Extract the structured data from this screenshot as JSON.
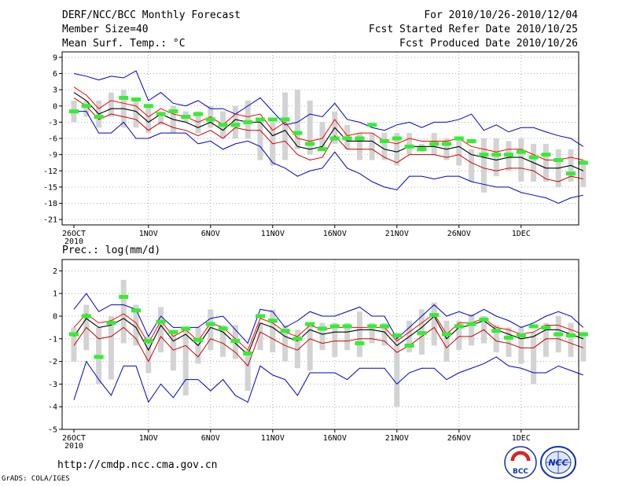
{
  "header": {
    "title": "DERF/NCC/BCC Monthly Forecast",
    "member": "Member Size=40",
    "variable": "Mean Surf. Temp.: °C",
    "period": "For 2010/10/26-2010/12/04",
    "start": "Fcst Started Refer Date 2010/10/25",
    "produced": "Fcst Produced Date 2010/10/26"
  },
  "footer": {
    "url": "http://cmdp.ncc.cma.gov.cn",
    "grads": "GrADS: COLA/IGES",
    "logo_bcc": "BCC",
    "logo_ncc": "NCC"
  },
  "colors": {
    "max": "#0000cc",
    "min": "#0000cc",
    "mean": "#000000",
    "upper": "#ff0000",
    "lower": "#cc0000",
    "box": "#d3d3d3",
    "obs": "#33ee33"
  },
  "chart_data": [
    {
      "type": "line",
      "title": "Mean Surf. Temp.: °C",
      "ylim": [
        -22,
        10
      ],
      "yticks": [
        9,
        6,
        3,
        0,
        -3,
        -6,
        -9,
        -12,
        -15,
        -18,
        -21
      ],
      "xticks": [
        {
          "i": 0,
          "label": "26OCT",
          "year": "2010"
        },
        {
          "i": 6,
          "label": "1NOV"
        },
        {
          "i": 11,
          "label": "6NOV"
        },
        {
          "i": 16,
          "label": "11NOV"
        },
        {
          "i": 21,
          "label": "16NOV"
        },
        {
          "i": 26,
          "label": "21NOV"
        },
        {
          "i": 31,
          "label": "26NOV"
        },
        {
          "i": 36,
          "label": "1DEC"
        }
      ],
      "series": {
        "max": [
          6,
          5.5,
          4.8,
          5.5,
          5.2,
          6.5,
          1,
          2.5,
          0.5,
          0,
          1,
          -0.5,
          -0.5,
          -1.5,
          0,
          1.5,
          -1,
          -3.5,
          -3,
          -1.5,
          -2,
          0.5,
          -2.5,
          -3,
          -4,
          -4.5,
          -3.5,
          -3,
          -4,
          -3,
          -3,
          -2.5,
          -1.5,
          -4.5,
          -3.5,
          -4.8,
          -4,
          -4,
          -4.8,
          -5.5,
          -6,
          -7.5
        ],
        "upper": [
          3.5,
          2,
          -0.5,
          1,
          0.5,
          0,
          -2,
          -0.5,
          -1.5,
          -2,
          -3,
          -2,
          -3.5,
          -1.5,
          -2,
          -1.5,
          -4.5,
          -3,
          -6,
          -6.5,
          -6,
          -2.5,
          -5.5,
          -5,
          -5,
          -6.5,
          -7,
          -6,
          -6.5,
          -6.5,
          -6.5,
          -6,
          -7.5,
          -8,
          -8.5,
          -8,
          -8,
          -9,
          -10,
          -10,
          -9.5,
          -10
        ],
        "mean": [
          2.5,
          1,
          -1.5,
          -0.5,
          -0.5,
          -1,
          -3,
          -1.5,
          -2.5,
          -3,
          -4,
          -3,
          -4.5,
          -2.5,
          -3,
          -3,
          -5.5,
          -4.5,
          -7.5,
          -8,
          -7.5,
          -4,
          -6.5,
          -6.5,
          -6.5,
          -8,
          -8.5,
          -7.5,
          -7.5,
          -7.5,
          -8,
          -7.5,
          -9,
          -9.5,
          -10,
          -9.5,
          -9.5,
          -10.5,
          -11.5,
          -11.5,
          -11,
          -12
        ],
        "lower": [
          1.5,
          0,
          -2.5,
          -1.5,
          -2,
          -2.5,
          -4.5,
          -3,
          -4,
          -4.5,
          -5.5,
          -4.5,
          -6,
          -4,
          -4.5,
          -4.5,
          -7,
          -6.5,
          -9,
          -10,
          -9.5,
          -5.5,
          -8,
          -8,
          -8,
          -9.5,
          -10.5,
          -9,
          -9,
          -9,
          -9.5,
          -9,
          -10.5,
          -11.5,
          -12,
          -11.5,
          -11.5,
          -12,
          -13.5,
          -14,
          -13,
          -13.5
        ],
        "min": [
          -1,
          -1,
          -5,
          -5,
          -3,
          -6,
          -6,
          -5,
          -5,
          -5,
          -7,
          -6.5,
          -8,
          -7,
          -6.5,
          -7.5,
          -10.5,
          -11.5,
          -13,
          -12,
          -11.5,
          -8.5,
          -11.5,
          -12.5,
          -14,
          -15,
          -15.5,
          -13,
          -13,
          -13.5,
          -13,
          -13,
          -14,
          -14.5,
          -15,
          -15,
          -16,
          -16.5,
          -17,
          -18,
          -17,
          -16.5
        ],
        "box_top": [
          1,
          1,
          1,
          2.5,
          3,
          1.5,
          0,
          -1,
          0,
          -1,
          -1,
          0,
          -1,
          0,
          1,
          -2.5,
          -3,
          2.5,
          3,
          1,
          -3,
          -1,
          -3.5,
          -5,
          -5,
          -5,
          -5,
          -5,
          -7,
          -5,
          -6,
          -6,
          -8,
          -6,
          -6,
          -6.5,
          -6,
          -7,
          -7,
          -8,
          -8,
          -10
        ],
        "box_bot": [
          -3,
          -2,
          -4,
          -2,
          -4,
          -4,
          -5,
          -3.5,
          -5,
          -3,
          -5,
          -4,
          -6,
          -6,
          -6,
          -10,
          -11,
          -10,
          -8,
          -9,
          -8,
          -7,
          -8,
          -10,
          -10,
          -10,
          -11,
          -9,
          -8,
          -9,
          -10,
          -11,
          -14,
          -16,
          -13,
          -12,
          -14,
          -14,
          -14,
          -15,
          -14,
          -15
        ],
        "obs": [
          -1,
          0,
          -2,
          null,
          1.5,
          1.2,
          0,
          -1.5,
          -1,
          -2,
          -1.5,
          -2.5,
          -3.5,
          -3.5,
          -3,
          -2.5,
          -2.5,
          -2.5,
          -5,
          -7,
          -8,
          -6,
          -6,
          -6,
          -3.5,
          -6.5,
          -6,
          -7.5,
          -8,
          -7,
          -7,
          -6,
          -6.5,
          -9,
          -9,
          -9,
          -8.5,
          -9.5,
          -9,
          -10,
          -12.5,
          -10.5
        ]
      }
    },
    {
      "type": "line",
      "title": "Prec.: log(mm/d)",
      "ylim": [
        -5,
        2.5
      ],
      "yticks": [
        2,
        1,
        0,
        -1,
        -2,
        -3,
        -4,
        -5
      ],
      "xticks": [
        {
          "i": 0,
          "label": "26OCT",
          "year": "2010"
        },
        {
          "i": 6,
          "label": "1NOV"
        },
        {
          "i": 11,
          "label": "6NOV"
        },
        {
          "i": 16,
          "label": "11NOV"
        },
        {
          "i": 21,
          "label": "16NOV"
        },
        {
          "i": 26,
          "label": "21NOV"
        },
        {
          "i": 31,
          "label": "26NOV"
        },
        {
          "i": 36,
          "label": "1DEC"
        }
      ],
      "series": {
        "max": [
          0.3,
          1,
          0.2,
          0.5,
          0.5,
          0.3,
          -0.9,
          0,
          -0.5,
          -0.5,
          -0.5,
          -0.1,
          0,
          -0.6,
          -1.2,
          0.3,
          0.2,
          -0.5,
          -0.2,
          0.2,
          0,
          0,
          0.2,
          0.4,
          0,
          0,
          -1,
          -0.5,
          0,
          0.5,
          0,
          0.2,
          0,
          0.3,
          0,
          -0.2,
          -0.5,
          -0.3,
          0,
          0.2,
          0,
          -0.5
        ],
        "upper": [
          -0.5,
          0.1,
          -0.3,
          -0.2,
          0.1,
          -0.3,
          -1.2,
          -0.2,
          -0.9,
          -0.6,
          -1.1,
          -0.3,
          -0.5,
          -1,
          -1.5,
          -0.1,
          -0.3,
          -0.7,
          -0.9,
          -0.4,
          -0.6,
          -0.5,
          -0.5,
          -0.5,
          -0.5,
          -0.5,
          -1.1,
          -0.7,
          -0.3,
          0.1,
          -0.8,
          -0.3,
          -0.3,
          -0.1,
          -0.5,
          -0.6,
          -0.8,
          -0.7,
          -0.4,
          -0.4,
          -0.6,
          -0.8
        ],
        "mean": [
          -0.9,
          -0.1,
          -0.5,
          -0.4,
          -0.1,
          -0.5,
          -1.5,
          -0.4,
          -1.1,
          -0.8,
          -1.3,
          -0.5,
          -0.7,
          -1.2,
          -1.7,
          -0.3,
          -0.5,
          -0.9,
          -1.1,
          -0.6,
          -0.8,
          -0.7,
          -0.7,
          -0.6,
          -0.6,
          -0.7,
          -1.3,
          -0.9,
          -0.5,
          0,
          -1,
          -0.5,
          -0.4,
          -0.2,
          -0.6,
          -0.8,
          -1,
          -0.9,
          -0.6,
          -0.6,
          -0.8,
          -1
        ],
        "lower": [
          -1.3,
          -0.5,
          -1,
          -0.9,
          -0.5,
          -1,
          -2,
          -0.9,
          -1.5,
          -1.3,
          -1.8,
          -1,
          -1.2,
          -1.6,
          -2.2,
          -0.7,
          -1,
          -1.3,
          -1.5,
          -1,
          -1.2,
          -1.1,
          -1.1,
          -1,
          -1,
          -1.1,
          -1.6,
          -1.3,
          -0.9,
          -0.5,
          -1.4,
          -0.9,
          -0.9,
          -0.6,
          -1.1,
          -1.2,
          -1.4,
          -1.4,
          -1,
          -1,
          -1.2,
          -1.4
        ],
        "min": [
          -3.7,
          -2,
          -2.8,
          -3.5,
          -2.2,
          -2.2,
          -3.8,
          -3,
          -3.6,
          -2.8,
          -2.8,
          -3.3,
          -2.8,
          -3.5,
          -3.8,
          -2.2,
          -2.6,
          -2.8,
          -3.5,
          -2.5,
          -2.5,
          -2.5,
          -2.8,
          -2.3,
          -2.3,
          -2.3,
          -3,
          -2.5,
          -2.3,
          -2.3,
          -2.8,
          -2.5,
          -2.3,
          -2.1,
          -1.8,
          -2.2,
          -2.3,
          -2.5,
          -2.5,
          -2.2,
          -2.4,
          -2.6
        ],
        "box_top": [
          -0.5,
          0.5,
          -0.5,
          0,
          1.6,
          0.5,
          -0.9,
          0.4,
          -0.7,
          -0.5,
          -0.5,
          0.3,
          -0.4,
          -0.4,
          -1.5,
          -0.3,
          0.3,
          -0.4,
          -0.6,
          -0.4,
          -0.3,
          -0.3,
          -0.3,
          0.2,
          -0.3,
          -0.3,
          -1,
          -0.2,
          0.3,
          0.6,
          -0.2,
          -0.2,
          0.1,
          0,
          -0.4,
          -0.5,
          -0.5,
          -0.7,
          -0.3,
          0,
          -0.3,
          -0.7
        ],
        "box_bot": [
          -2,
          -1.5,
          -3,
          -2.8,
          -1.2,
          -1.3,
          -2.5,
          -1.6,
          -2.4,
          -3.5,
          -2.1,
          -1.5,
          -1.8,
          -1.9,
          -3.3,
          -1.5,
          -1.6,
          -2,
          -2.3,
          -2.4,
          -1.5,
          -1.8,
          -1.5,
          -1.8,
          -1.2,
          -1.3,
          -4,
          -1.6,
          -1.7,
          -1.3,
          -2,
          -1.5,
          -1.3,
          -1.2,
          -1.6,
          -1.8,
          -2.1,
          -3,
          -1.8,
          -1.6,
          -1.8,
          -2
        ],
        "obs": [
          -0.8,
          0,
          -1.8,
          -0.3,
          0.85,
          0.25,
          -1.1,
          -0.25,
          -0.7,
          -0.55,
          -1.05,
          -0.35,
          -0.55,
          -1.1,
          -1.65,
          0,
          -0.2,
          -0.65,
          -1,
          -0.35,
          -0.55,
          -0.45,
          -0.45,
          -1.2,
          -0.45,
          -0.45,
          -0.85,
          -1.3,
          -0.75,
          0.05,
          -0.8,
          -0.45,
          -0.35,
          -0.15,
          -0.65,
          -0.95,
          -0.85,
          -0.45,
          -0.5,
          -0.8,
          -0.85,
          -0.8
        ]
      }
    }
  ]
}
